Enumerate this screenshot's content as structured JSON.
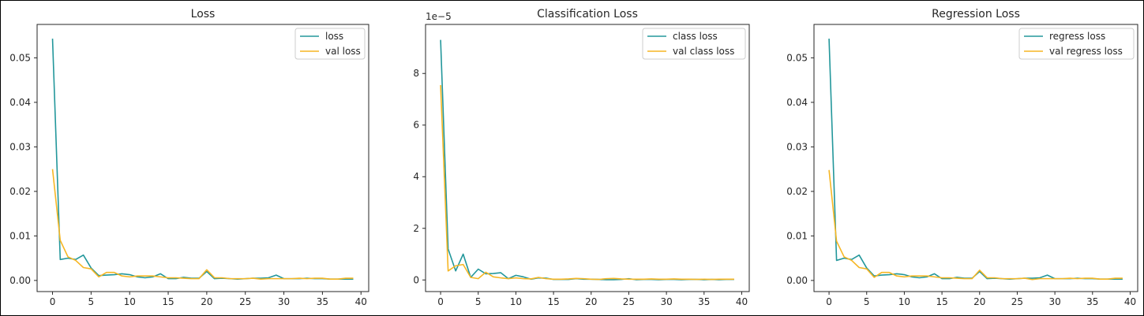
{
  "colors": {
    "train": "#23979b",
    "val": "#f6b624",
    "axes": "#262626",
    "frame": "#000000"
  },
  "chart_data": [
    {
      "type": "line",
      "title": "Loss",
      "xlabel": "",
      "ylabel": "",
      "xlim": [
        -2,
        41
      ],
      "ylim": [
        -0.0025,
        0.0575
      ],
      "xticks": [
        0,
        5,
        10,
        15,
        20,
        25,
        30,
        35,
        40
      ],
      "yticks": [
        0.0,
        0.01,
        0.02,
        0.03,
        0.04,
        0.05
      ],
      "ytick_labels": [
        "0.00",
        "0.01",
        "0.02",
        "0.03",
        "0.04",
        "0.05"
      ],
      "offset_text": "",
      "legend_position": "upper right",
      "x": [
        0,
        1,
        2,
        3,
        4,
        5,
        6,
        7,
        8,
        9,
        10,
        11,
        12,
        13,
        14,
        15,
        16,
        17,
        18,
        19,
        20,
        21,
        22,
        23,
        24,
        25,
        26,
        27,
        28,
        29,
        30,
        31,
        32,
        33,
        34,
        35,
        36,
        37,
        38,
        39
      ],
      "series": [
        {
          "name": "loss",
          "color": "#23979b",
          "values": [
            0.0543,
            0.0047,
            0.005,
            0.0047,
            0.0057,
            0.0028,
            0.0011,
            0.0012,
            0.0013,
            0.0015,
            0.0013,
            0.0008,
            0.0006,
            0.0008,
            0.0015,
            0.0004,
            0.0004,
            0.0007,
            0.0005,
            0.0005,
            0.002,
            0.0004,
            0.0005,
            0.0004,
            0.0003,
            0.0004,
            0.0005,
            0.0005,
            0.0006,
            0.0012,
            0.0004,
            0.0004,
            0.0004,
            0.0005,
            0.0004,
            0.0004,
            0.0003,
            0.0003,
            0.0003,
            0.0003
          ]
        },
        {
          "name": "val loss",
          "color": "#f6b624",
          "values": [
            0.025,
            0.009,
            0.0053,
            0.0045,
            0.0029,
            0.0026,
            0.0008,
            0.0018,
            0.0018,
            0.001,
            0.0008,
            0.001,
            0.001,
            0.001,
            0.0008,
            0.0006,
            0.0006,
            0.0005,
            0.0004,
            0.0004,
            0.0024,
            0.0006,
            0.0006,
            0.0004,
            0.0004,
            0.0004,
            0.0005,
            0.0003,
            0.0004,
            0.0004,
            0.0004,
            0.0004,
            0.0005,
            0.0004,
            0.0005,
            0.0005,
            0.0003,
            0.0003,
            0.0005,
            0.0005
          ]
        }
      ]
    },
    {
      "type": "line",
      "title": "Classification Loss",
      "xlabel": "",
      "ylabel": "",
      "xlim": [
        -2,
        41
      ],
      "ylim": [
        -0.45,
        9.9
      ],
      "xticks": [
        0,
        5,
        10,
        15,
        20,
        25,
        30,
        35,
        40
      ],
      "yticks": [
        0,
        2,
        4,
        6,
        8
      ],
      "ytick_labels": [
        "0",
        "2",
        "4",
        "6",
        "8"
      ],
      "offset_text": "1e−5",
      "legend_position": "upper right",
      "x": [
        0,
        1,
        2,
        3,
        4,
        5,
        6,
        7,
        8,
        9,
        10,
        11,
        12,
        13,
        14,
        15,
        16,
        17,
        18,
        19,
        20,
        21,
        22,
        23,
        24,
        25,
        26,
        27,
        28,
        29,
        30,
        31,
        32,
        33,
        34,
        35,
        36,
        37,
        38,
        39
      ],
      "series": [
        {
          "name": "class loss",
          "color": "#23979b",
          "values": [
            9.3,
            1.2,
            0.35,
            1.0,
            0.1,
            0.42,
            0.24,
            0.25,
            0.28,
            0.05,
            0.18,
            0.12,
            0.03,
            0.08,
            0.07,
            0.02,
            0.02,
            0.02,
            0.05,
            0.03,
            0.03,
            0.02,
            0.01,
            0.01,
            0.02,
            0.05,
            0.01,
            0.02,
            0.02,
            0.01,
            0.02,
            0.02,
            0.01,
            0.02,
            0.02,
            0.01,
            0.02,
            0.01,
            0.02,
            0.02
          ]
        },
        {
          "name": "val class loss",
          "color": "#f6b624",
          "values": [
            7.55,
            0.35,
            0.55,
            0.6,
            0.1,
            0.05,
            0.3,
            0.12,
            0.08,
            0.05,
            0.08,
            0.05,
            0.04,
            0.1,
            0.05,
            0.03,
            0.03,
            0.04,
            0.06,
            0.05,
            0.03,
            0.02,
            0.05,
            0.06,
            0.04,
            0.03,
            0.03,
            0.03,
            0.04,
            0.03,
            0.03,
            0.04,
            0.03,
            0.03,
            0.02,
            0.03,
            0.02,
            0.03,
            0.03,
            0.03
          ]
        }
      ]
    },
    {
      "type": "line",
      "title": "Regression Loss",
      "xlabel": "",
      "ylabel": "",
      "xlim": [
        -2,
        41
      ],
      "ylim": [
        -0.0025,
        0.0575
      ],
      "xticks": [
        0,
        5,
        10,
        15,
        20,
        25,
        30,
        35,
        40
      ],
      "yticks": [
        0.0,
        0.01,
        0.02,
        0.03,
        0.04,
        0.05
      ],
      "ytick_labels": [
        "0.00",
        "0.01",
        "0.02",
        "0.03",
        "0.04",
        "0.05"
      ],
      "offset_text": "",
      "legend_position": "upper right",
      "x": [
        0,
        1,
        2,
        3,
        4,
        5,
        6,
        7,
        8,
        9,
        10,
        11,
        12,
        13,
        14,
        15,
        16,
        17,
        18,
        19,
        20,
        21,
        22,
        23,
        24,
        25,
        26,
        27,
        28,
        29,
        30,
        31,
        32,
        33,
        34,
        35,
        36,
        37,
        38,
        39
      ],
      "series": [
        {
          "name": "regress loss",
          "color": "#23979b",
          "values": [
            0.0543,
            0.0045,
            0.005,
            0.0047,
            0.0057,
            0.0028,
            0.001,
            0.0012,
            0.0013,
            0.0015,
            0.0013,
            0.0008,
            0.0006,
            0.0008,
            0.0015,
            0.0004,
            0.0004,
            0.0007,
            0.0005,
            0.0005,
            0.002,
            0.0004,
            0.0005,
            0.0004,
            0.0003,
            0.0004,
            0.0005,
            0.0005,
            0.0006,
            0.0012,
            0.0004,
            0.0004,
            0.0004,
            0.0005,
            0.0004,
            0.0004,
            0.0003,
            0.0003,
            0.0003,
            0.0003
          ]
        },
        {
          "name": "val regress loss",
          "color": "#f6b624",
          "values": [
            0.0248,
            0.0088,
            0.0053,
            0.0045,
            0.0029,
            0.0026,
            0.0007,
            0.0018,
            0.0018,
            0.001,
            0.0008,
            0.001,
            0.001,
            0.001,
            0.0008,
            0.0006,
            0.0006,
            0.0005,
            0.0004,
            0.0004,
            0.0023,
            0.0006,
            0.0006,
            0.0004,
            0.0004,
            0.0004,
            0.0005,
            0.0002,
            0.0004,
            0.0004,
            0.0004,
            0.0004,
            0.0005,
            0.0004,
            0.0005,
            0.0005,
            0.0003,
            0.0003,
            0.0005,
            0.0005
          ]
        }
      ]
    }
  ]
}
